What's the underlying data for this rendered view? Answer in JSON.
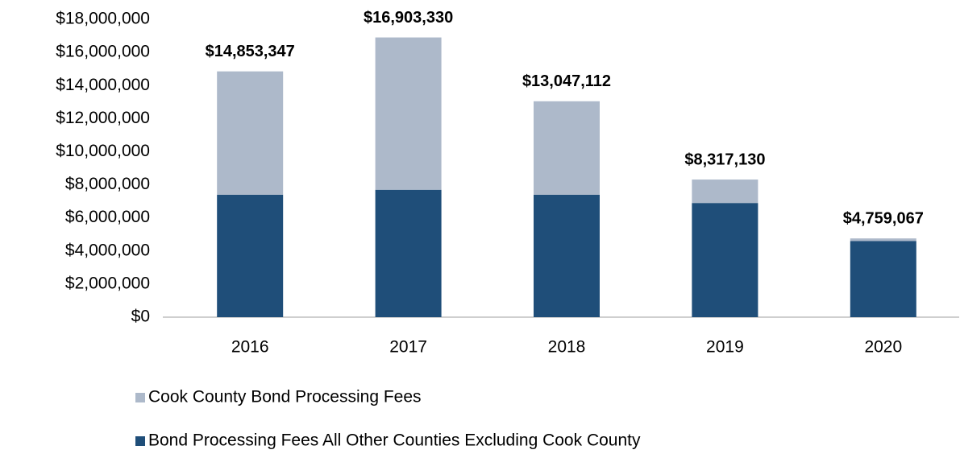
{
  "chart_data": {
    "type": "stacked_bar",
    "categories": [
      "2016",
      "2017",
      "2018",
      "2019",
      "2020"
    ],
    "series": [
      {
        "name": "Bond Processing Fees All Other Counties Excluding Cook County",
        "color": "#1f4e79",
        "values": [
          7400000,
          7700000,
          7400000,
          6900000,
          4600000
        ]
      },
      {
        "name": "Cook County Bond Processing Fees",
        "color": "#adb9ca",
        "values": [
          7453347,
          9203330,
          5647112,
          1417130,
          159067
        ]
      }
    ],
    "totals": [
      14853347,
      16903330,
      13047112,
      8317130,
      4759067
    ],
    "total_labels": [
      "$14,853,347",
      "$16,903,330",
      "$13,047,112",
      "$8,317,130",
      "$4,759,067"
    ],
    "ylim": [
      0,
      18000000
    ],
    "yticks": [
      {
        "value": 0,
        "label": "$0"
      },
      {
        "value": 2000000,
        "label": "$2,000,000"
      },
      {
        "value": 4000000,
        "label": "$4,000,000"
      },
      {
        "value": 6000000,
        "label": "$6,000,000"
      },
      {
        "value": 8000000,
        "label": "$8,000,000"
      },
      {
        "value": 10000000,
        "label": "$10,000,000"
      },
      {
        "value": 12000000,
        "label": "$12,000,000"
      },
      {
        "value": 14000000,
        "label": "$14,000,000"
      },
      {
        "value": 16000000,
        "label": "$16,000,000"
      },
      {
        "value": 18000000,
        "label": "$18,000,000"
      }
    ],
    "grid": false,
    "legend": "bottom"
  }
}
